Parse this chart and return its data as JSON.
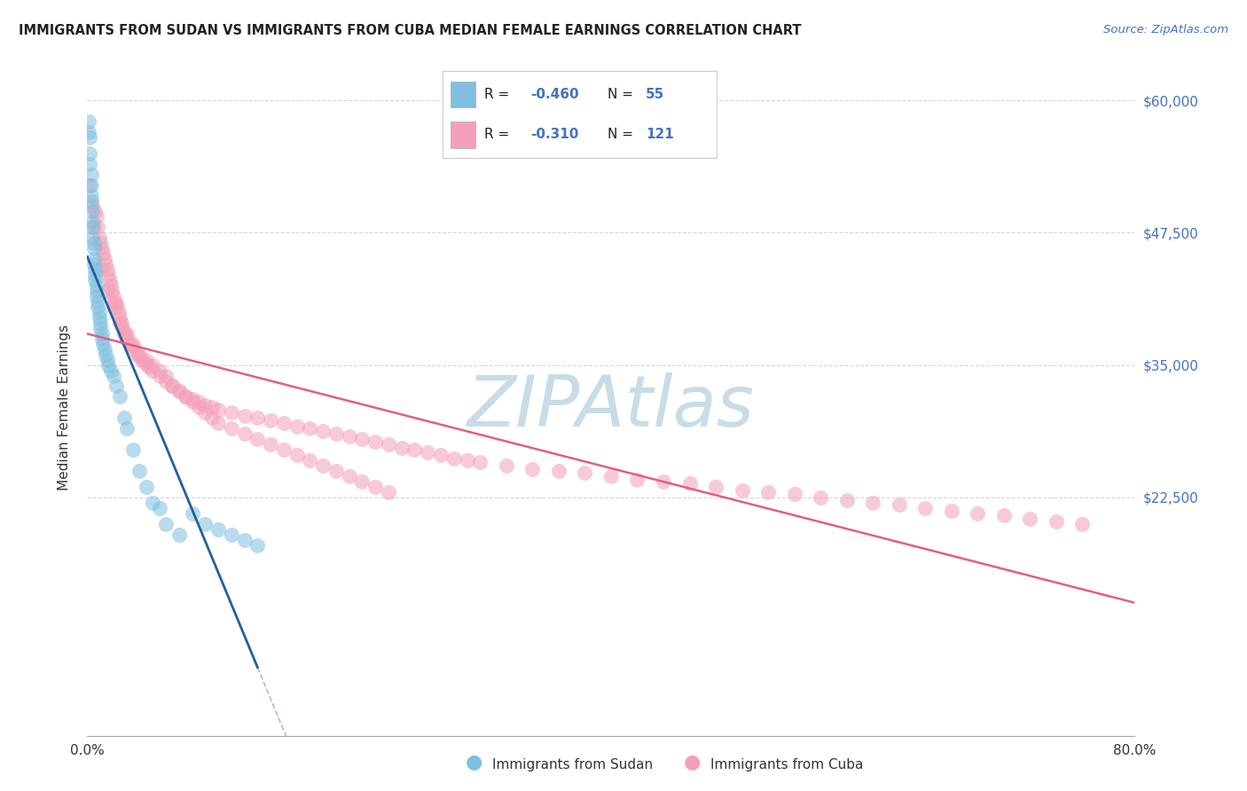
{
  "title": "IMMIGRANTS FROM SUDAN VS IMMIGRANTS FROM CUBA MEDIAN FEMALE EARNINGS CORRELATION CHART",
  "source": "Source: ZipAtlas.com",
  "ylabel": "Median Female Earnings",
  "yticks": [
    0,
    22500,
    35000,
    47500,
    60000
  ],
  "ytick_labels": [
    "",
    "$22,500",
    "$35,000",
    "$47,500",
    "$60,000"
  ],
  "xmin": 0.0,
  "xmax": 0.8,
  "ymin": 0,
  "ymax": 62000,
  "sudan_color": "#7fbfdf",
  "cuba_color": "#f4a0b8",
  "sudan_line_color": "#2060a0",
  "cuba_line_color": "#e06080",
  "watermark": "ZIPAtlas",
  "watermark_color": "#c8dce8",
  "background_color": "#ffffff",
  "grid_color": "#cccccc",
  "sudan_x": [
    0.001,
    0.001,
    0.002,
    0.002,
    0.002,
    0.003,
    0.003,
    0.003,
    0.003,
    0.004,
    0.004,
    0.004,
    0.004,
    0.005,
    0.005,
    0.005,
    0.005,
    0.006,
    0.006,
    0.006,
    0.007,
    0.007,
    0.007,
    0.008,
    0.008,
    0.009,
    0.009,
    0.01,
    0.01,
    0.011,
    0.011,
    0.012,
    0.013,
    0.014,
    0.015,
    0.016,
    0.018,
    0.02,
    0.022,
    0.025,
    0.028,
    0.03,
    0.035,
    0.04,
    0.045,
    0.05,
    0.055,
    0.06,
    0.07,
    0.08,
    0.09,
    0.1,
    0.11,
    0.12,
    0.13
  ],
  "sudan_y": [
    58000,
    57000,
    56500,
    55000,
    54000,
    53000,
    52000,
    51000,
    50500,
    49500,
    48500,
    48000,
    47000,
    46500,
    46000,
    45000,
    44500,
    44000,
    43500,
    43000,
    42500,
    42000,
    41500,
    41000,
    40500,
    40000,
    39500,
    39000,
    38500,
    38000,
    37500,
    37000,
    36500,
    36000,
    35500,
    35000,
    34500,
    34000,
    33000,
    32000,
    30000,
    29000,
    27000,
    25000,
    23500,
    22000,
    21500,
    20000,
    19000,
    21000,
    20000,
    19500,
    19000,
    18500,
    18000
  ],
  "cuba_x": [
    0.002,
    0.004,
    0.006,
    0.007,
    0.008,
    0.009,
    0.01,
    0.011,
    0.012,
    0.013,
    0.014,
    0.015,
    0.016,
    0.017,
    0.018,
    0.019,
    0.02,
    0.021,
    0.022,
    0.023,
    0.024,
    0.025,
    0.026,
    0.027,
    0.028,
    0.029,
    0.03,
    0.032,
    0.034,
    0.036,
    0.038,
    0.04,
    0.042,
    0.044,
    0.046,
    0.048,
    0.05,
    0.055,
    0.06,
    0.065,
    0.07,
    0.075,
    0.08,
    0.085,
    0.09,
    0.095,
    0.1,
    0.11,
    0.12,
    0.13,
    0.14,
    0.15,
    0.16,
    0.17,
    0.18,
    0.19,
    0.2,
    0.21,
    0.22,
    0.23,
    0.24,
    0.25,
    0.26,
    0.27,
    0.28,
    0.29,
    0.3,
    0.32,
    0.34,
    0.36,
    0.38,
    0.4,
    0.42,
    0.44,
    0.46,
    0.48,
    0.5,
    0.52,
    0.54,
    0.56,
    0.58,
    0.6,
    0.62,
    0.64,
    0.66,
    0.68,
    0.7,
    0.72,
    0.74,
    0.76,
    0.005,
    0.01,
    0.015,
    0.02,
    0.025,
    0.03,
    0.035,
    0.04,
    0.045,
    0.05,
    0.055,
    0.06,
    0.065,
    0.07,
    0.075,
    0.08,
    0.085,
    0.09,
    0.095,
    0.1,
    0.11,
    0.12,
    0.13,
    0.14,
    0.15,
    0.16,
    0.17,
    0.18,
    0.19,
    0.2,
    0.21,
    0.22,
    0.23
  ],
  "cuba_y": [
    52000,
    50000,
    49500,
    49000,
    48000,
    47000,
    46500,
    46000,
    45500,
    45000,
    44500,
    44000,
    43500,
    43000,
    42500,
    42000,
    41500,
    41000,
    40800,
    40500,
    40000,
    39500,
    39000,
    38500,
    38000,
    37800,
    37500,
    37000,
    36800,
    36500,
    36000,
    35800,
    35500,
    35200,
    35000,
    34800,
    34500,
    34000,
    33500,
    33000,
    32500,
    32000,
    31800,
    31500,
    31200,
    31000,
    30800,
    30500,
    30200,
    30000,
    29800,
    29500,
    29200,
    29000,
    28800,
    28500,
    28300,
    28000,
    27800,
    27500,
    27200,
    27000,
    26800,
    26500,
    26200,
    26000,
    25800,
    25500,
    25200,
    25000,
    24800,
    24500,
    24200,
    24000,
    23800,
    23500,
    23200,
    23000,
    22800,
    22500,
    22200,
    22000,
    21800,
    21500,
    21200,
    21000,
    20800,
    20500,
    20200,
    20000,
    48000,
    44000,
    42000,
    40500,
    39000,
    38000,
    37000,
    36000,
    35500,
    35000,
    34500,
    34000,
    33000,
    32500,
    32000,
    31500,
    31000,
    30500,
    30000,
    29500,
    29000,
    28500,
    28000,
    27500,
    27000,
    26500,
    26000,
    25500,
    25000,
    24500,
    24000,
    23500,
    23000
  ]
}
